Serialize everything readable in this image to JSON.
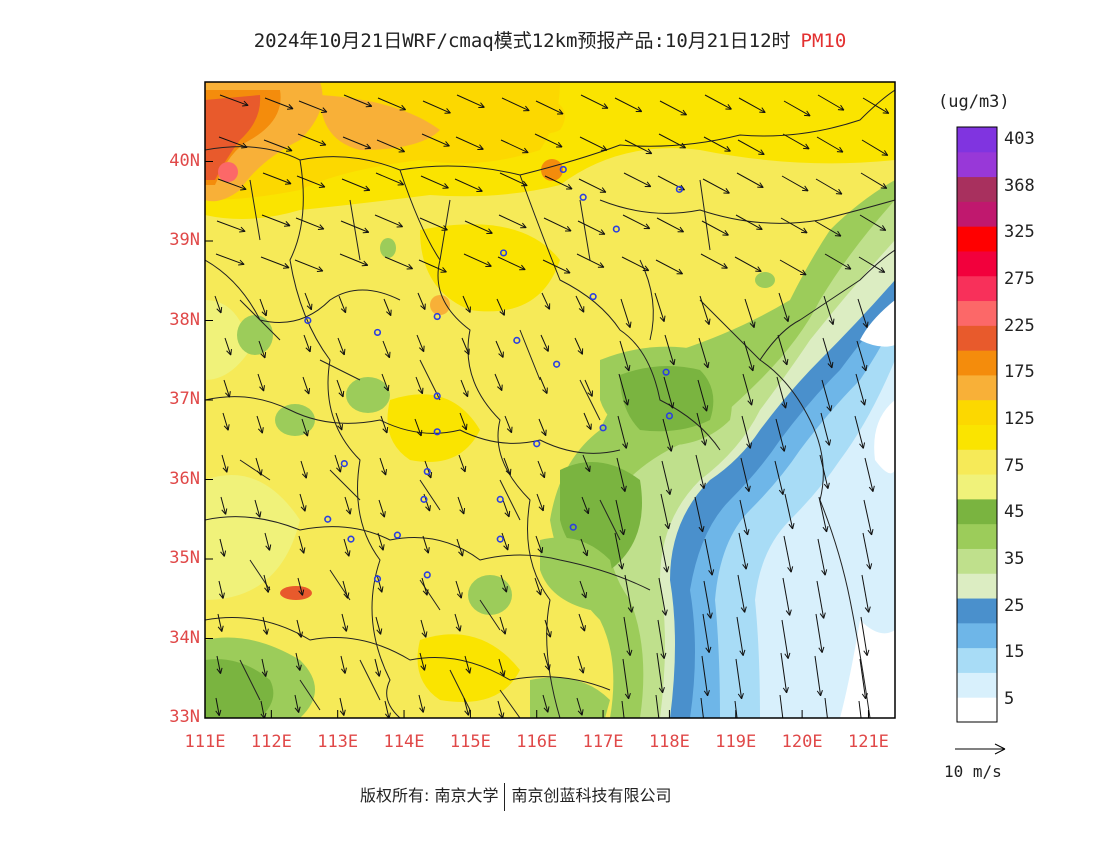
{
  "title": {
    "main": "2024年10月21日WRF/cmaq模式12km预报产品:10月21日12时",
    "pollutant": "PM10"
  },
  "axes": {
    "lat_labels": [
      "40N",
      "39N",
      "38N",
      "37N",
      "36N",
      "35N",
      "34N",
      "33N"
    ],
    "lon_labels": [
      "111E",
      "112E",
      "113E",
      "114E",
      "115E",
      "116E",
      "117E",
      "118E",
      "119E",
      "120E",
      "121E"
    ],
    "lat_range": [
      33,
      41
    ],
    "lon_range": [
      111,
      121.4
    ]
  },
  "colorbar": {
    "unit": "(ug/m3)",
    "colors": [
      "#ffffff",
      "#d8f0fc",
      "#a8dcf6",
      "#6eb6e8",
      "#4a90cc",
      "#dcedc2",
      "#bfe08c",
      "#9ccc5a",
      "#7ab440",
      "#f0f27a",
      "#f6ea58",
      "#fae400",
      "#fcd800",
      "#f8b038",
      "#f48c0c",
      "#e85a2c",
      "#fc6868",
      "#f8305a",
      "#f2003c",
      "#ff0000",
      "#c0186e",
      "#a8305e",
      "#9838d8",
      "#8034e0"
    ],
    "labels": [
      "5",
      "15",
      "25",
      "35",
      "45",
      "75",
      "125",
      "175",
      "225",
      "275",
      "325",
      "368",
      "403"
    ]
  },
  "wind_legend": {
    "label": "10 m/s"
  },
  "footer": {
    "left": "版权所有: 南京大学",
    "right": "南京创蓝科技有限公司"
  }
}
